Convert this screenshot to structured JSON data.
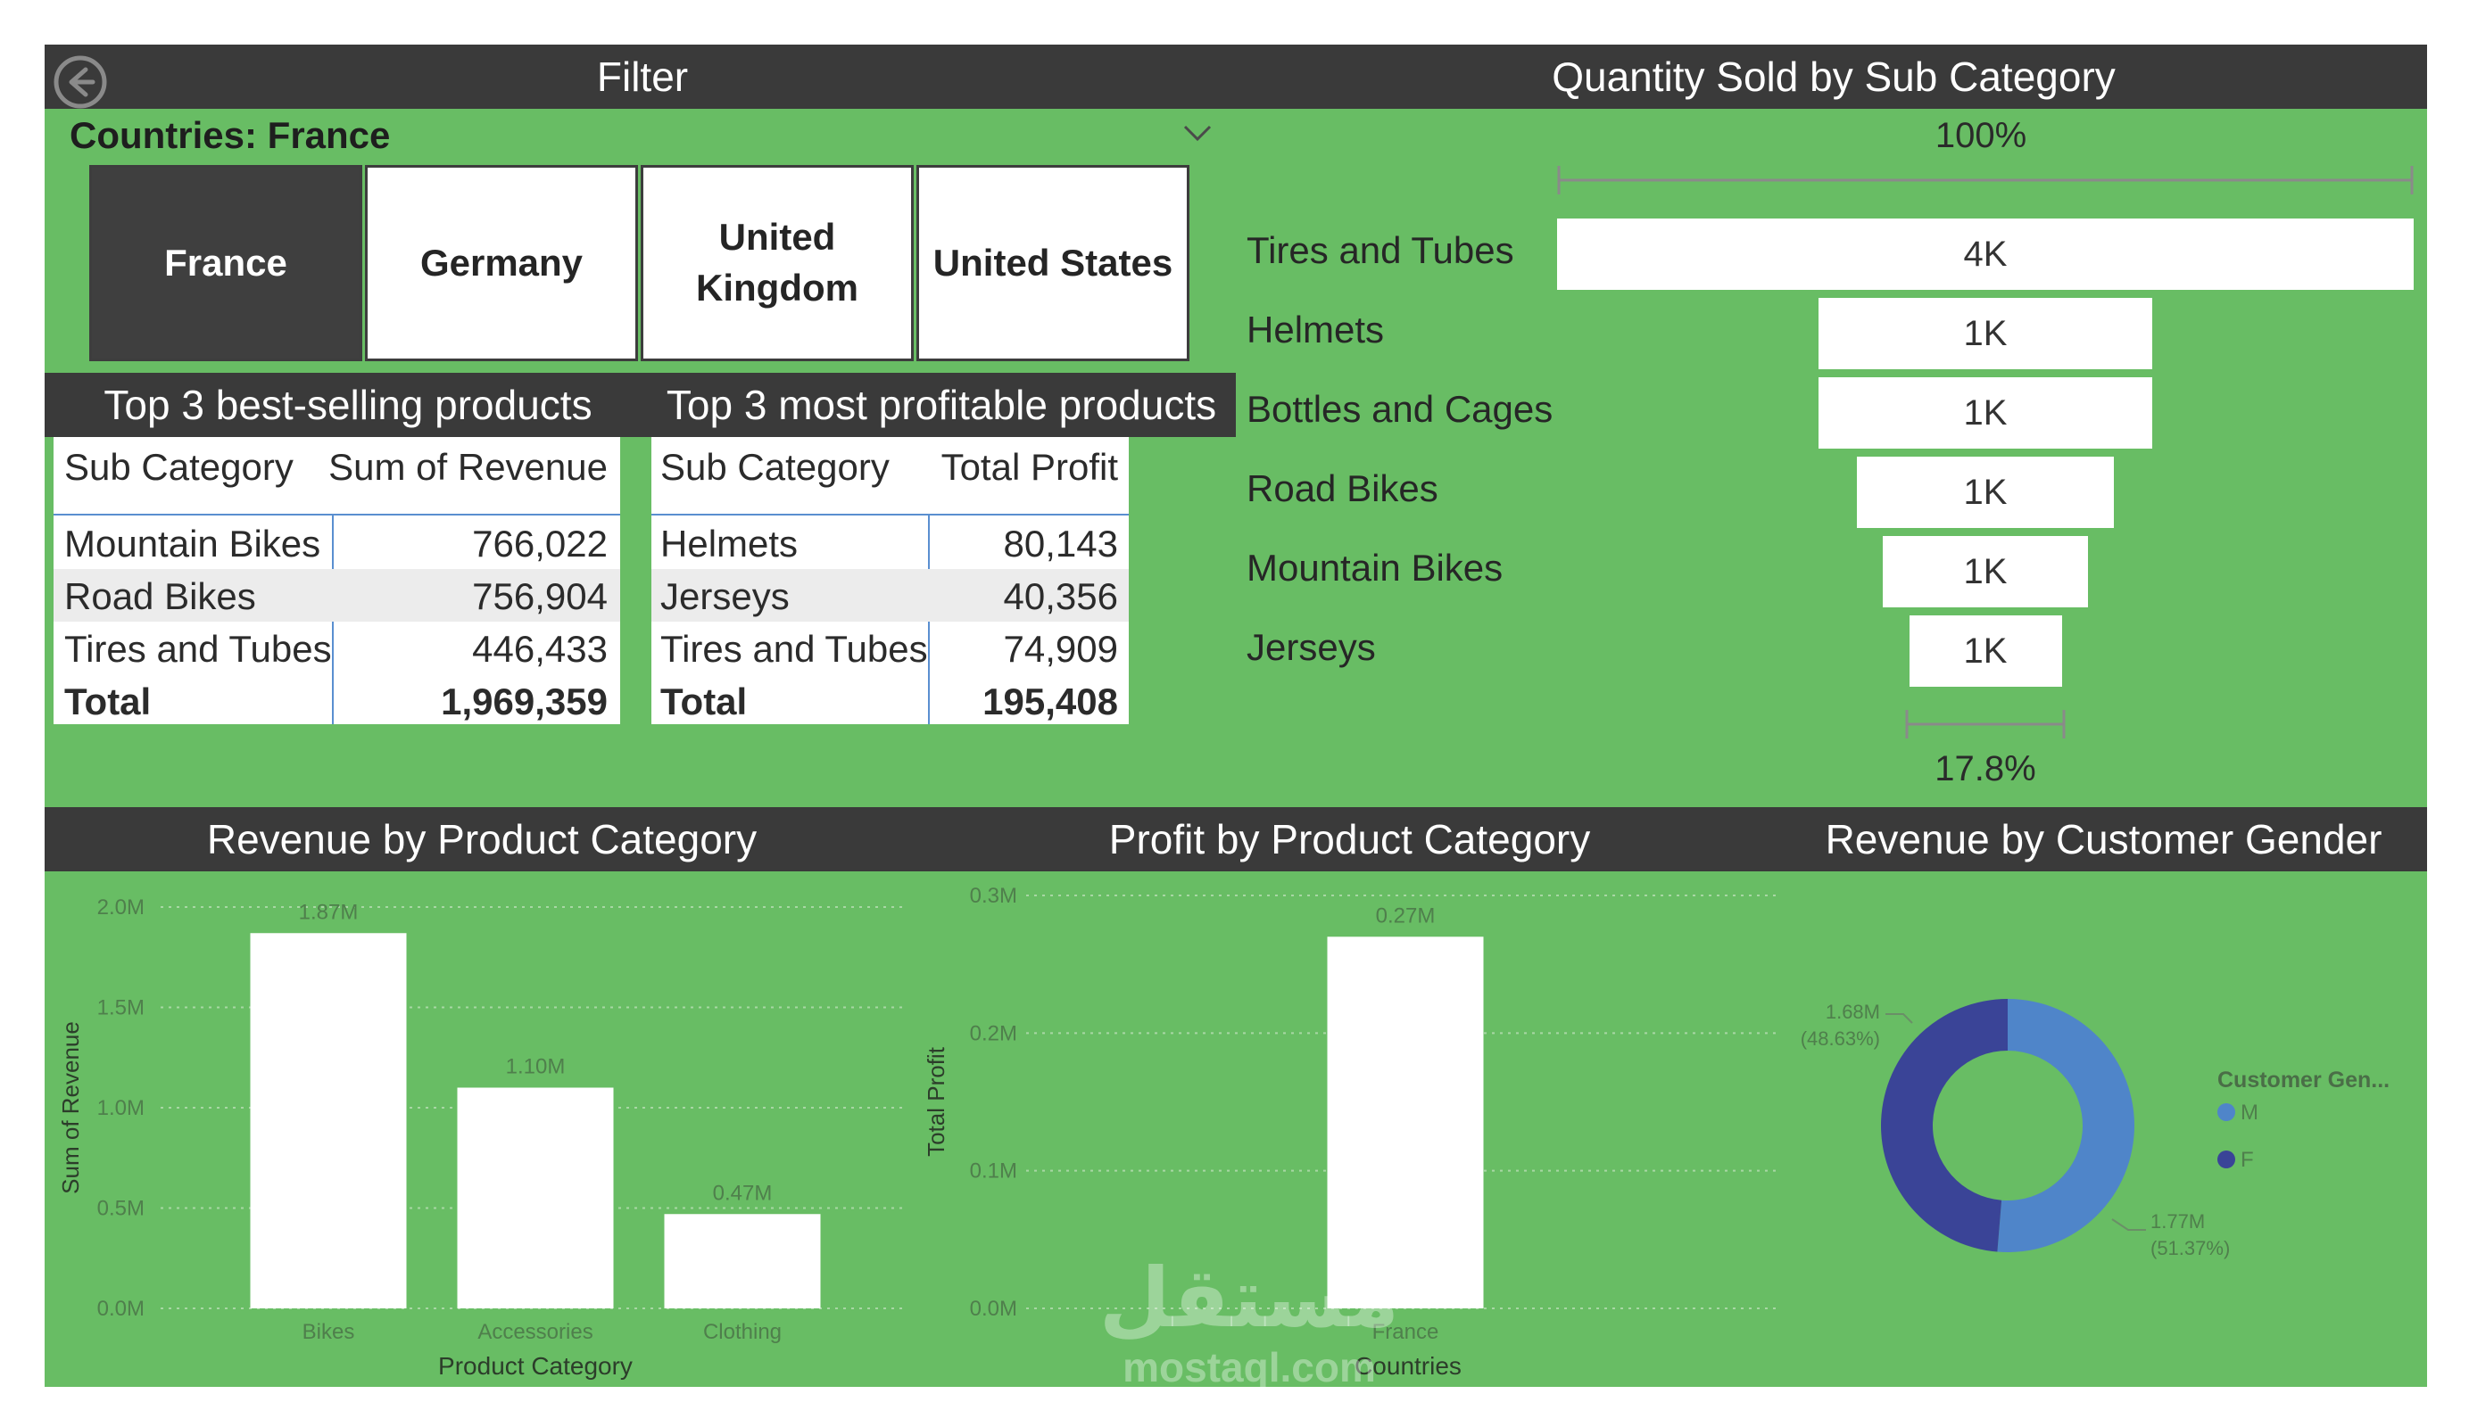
{
  "colors": {
    "panel_green": "#68bd64",
    "header_dark": "#3a3a3a",
    "tile_selected": "#3f3f3f",
    "donut_m": "#4f85c9",
    "donut_f": "#3a4497",
    "bar": "#ffffff"
  },
  "filter": {
    "header": "Filter",
    "back_icon": "back-arrow-icon",
    "slicer_label": "Countries: France",
    "chevron_icon": "chevron-down-icon",
    "tiles": [
      {
        "label": "France",
        "selected": true
      },
      {
        "label": "Germany",
        "selected": false
      },
      {
        "label": "United Kingdom",
        "selected": false
      },
      {
        "label": "United States",
        "selected": false
      }
    ]
  },
  "best_selling": {
    "header": "Top 3 best-selling products",
    "columns": [
      "Sub Category",
      "Sum of Revenue"
    ],
    "rows": [
      [
        "Mountain Bikes",
        "766,022"
      ],
      [
        "Road Bikes",
        "756,904"
      ],
      [
        "Tires and Tubes",
        "446,433"
      ]
    ],
    "total_label": "Total",
    "total_value": "1,969,359"
  },
  "most_profitable": {
    "header": "Top 3 most profitable products",
    "columns": [
      "Sub Category",
      "Total Profit"
    ],
    "rows": [
      [
        "Helmets",
        "80,143"
      ],
      [
        "Jerseys",
        "40,356"
      ],
      [
        "Tires and Tubes",
        "74,909"
      ]
    ],
    "total_label": "Total",
    "total_value": "195,408"
  },
  "funnel": {
    "header": "Quantity Sold by Sub Category",
    "top_percent": "100%",
    "bottom_percent": "17.8%",
    "chart_data": {
      "type": "funnel",
      "categories": [
        "Tires and Tubes",
        "Helmets",
        "Bottles and Cages",
        "Road Bikes",
        "Mountain Bikes",
        "Jerseys"
      ],
      "relative_width": [
        1.0,
        0.39,
        0.39,
        0.3,
        0.24,
        0.178
      ],
      "labels": [
        "4K",
        "1K",
        "1K",
        "1K",
        "1K",
        "1K"
      ]
    }
  },
  "revenue_by_category": {
    "header": "Revenue by Product Category",
    "chart_data": {
      "type": "bar",
      "categories": [
        "Bikes",
        "Accessories",
        "Clothing"
      ],
      "values": [
        1.87,
        1.1,
        0.47
      ],
      "data_labels": [
        "1.87M",
        "1.10M",
        "0.47M"
      ],
      "yticks": [
        "0.0M",
        "0.5M",
        "1.0M",
        "1.5M",
        "2.0M"
      ],
      "ylim": [
        0,
        2.0
      ],
      "xlabel": "Product Category",
      "ylabel": "Sum of Revenue",
      "grid": true
    }
  },
  "profit_by_category": {
    "header": "Profit by Product Category",
    "chart_data": {
      "type": "bar",
      "categories": [
        "France"
      ],
      "values": [
        0.27
      ],
      "data_labels": [
        "0.27M"
      ],
      "yticks": [
        "0.0M",
        "0.1M",
        "0.2M",
        "0.3M"
      ],
      "ylim": [
        0,
        0.3
      ],
      "xlabel": "Countries",
      "ylabel": "Total Profit",
      "grid": true
    }
  },
  "revenue_by_gender": {
    "header": "Revenue by Customer Gender",
    "chart_data": {
      "type": "pie",
      "donut": true,
      "slices": [
        {
          "name": "M",
          "value": 1.77,
          "label": "1.77M",
          "percent_label": "(51.37%)"
        },
        {
          "name": "F",
          "value": 1.68,
          "label": "1.68M",
          "percent_label": "(48.63%)"
        }
      ],
      "legend_title": "Customer Gen...",
      "legend_position": "right"
    }
  },
  "watermark": {
    "arabic": "مستقل",
    "latin": "mostaql.com"
  }
}
